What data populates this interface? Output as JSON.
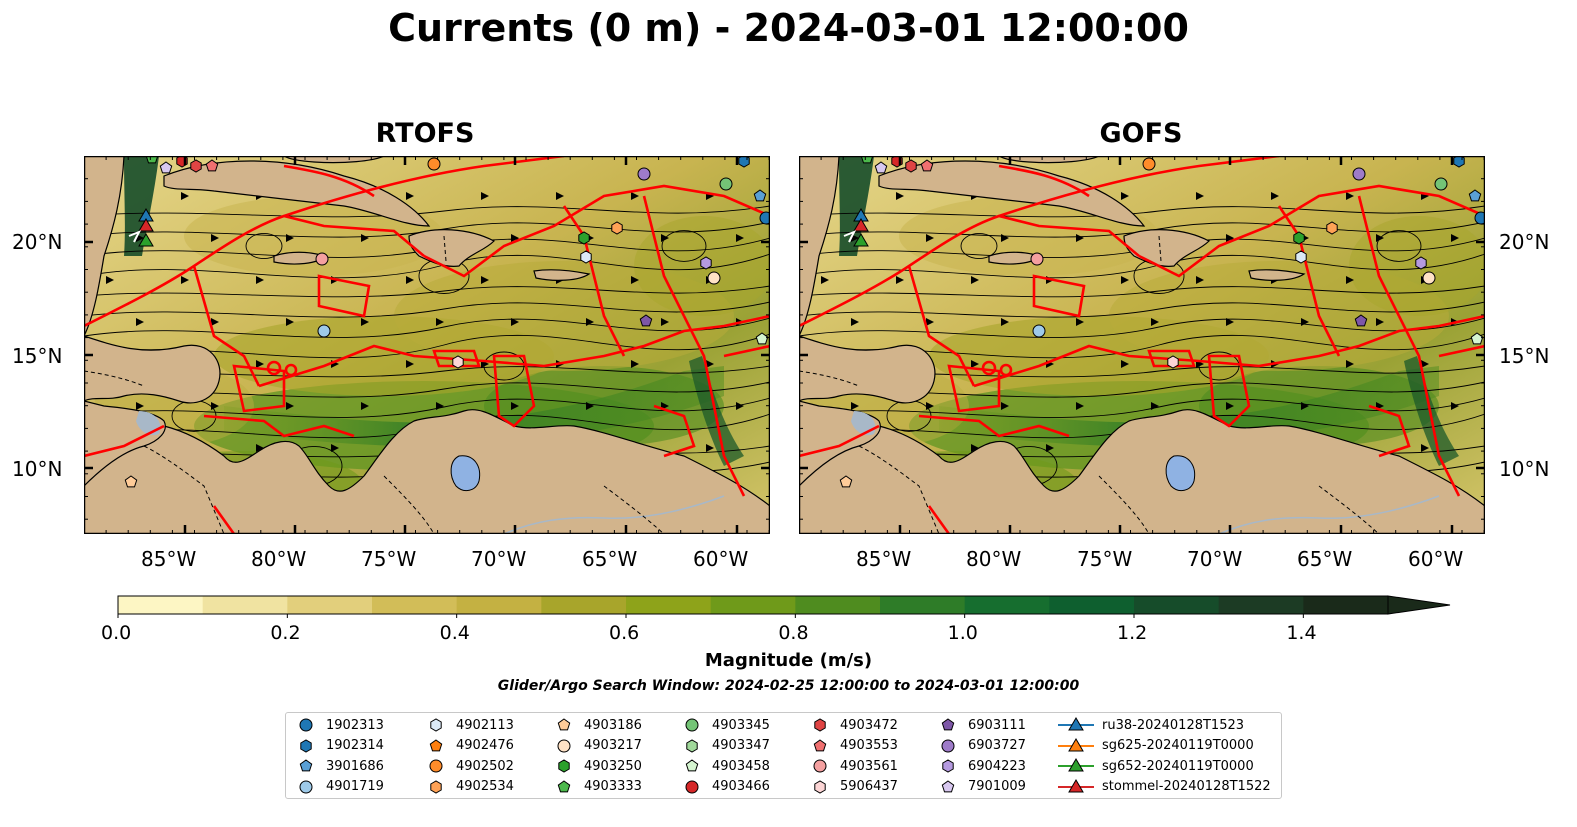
{
  "title": "Currents (0 m) - 2024-03-01 12:00:00",
  "panels": [
    {
      "title": "RTOFS"
    },
    {
      "title": "GOFS"
    }
  ],
  "lat_labels": [
    "20°N",
    "15°N",
    "10°N"
  ],
  "lon_labels": [
    "85°W",
    "80°W",
    "75°W",
    "70°W",
    "65°W",
    "60°W"
  ],
  "colorbar": {
    "label": "Magnitude (m/s)",
    "ticks": [
      "0.0",
      "0.2",
      "0.4",
      "0.6",
      "0.8",
      "1.0",
      "1.2",
      "1.4"
    ],
    "range": [
      0.0,
      1.5
    ],
    "colors": [
      "#fdf6c4",
      "#f0e3a1",
      "#e2cf7c",
      "#d2bd58",
      "#c4b142",
      "#a8a52b",
      "#8ea31a",
      "#6f9a1a",
      "#4f8c1f",
      "#2e7c28",
      "#166e2f",
      "#0e5f2f",
      "#164c2a",
      "#1c3b24",
      "#1a2a1a"
    ]
  },
  "search_window": "Glider/Argo Search Window: 2024-02-25 12:00:00 to 2024-03-01 12:00:00",
  "legend": [
    {
      "label": "1902313",
      "marker": "circle",
      "color": "#1f77b4"
    },
    {
      "label": "1902314",
      "marker": "hexagon",
      "color": "#1f77b4"
    },
    {
      "label": "3901686",
      "marker": "pentagon",
      "color": "#5aa0d6"
    },
    {
      "label": "4901719",
      "marker": "circle",
      "color": "#9ecae9"
    },
    {
      "label": "4902113",
      "marker": "hexagon",
      "color": "#dbe9f6"
    },
    {
      "label": "4902476",
      "marker": "pentagon",
      "color": "#ff7f0e"
    },
    {
      "label": "4902502",
      "marker": "circle",
      "color": "#ff8c2a"
    },
    {
      "label": "4902534",
      "marker": "hexagon",
      "color": "#ffa256"
    },
    {
      "label": "4903186",
      "marker": "pentagon",
      "color": "#ffcc99"
    },
    {
      "label": "4903217",
      "marker": "circle",
      "color": "#ffe2c6"
    },
    {
      "label": "4903250",
      "marker": "hexagon",
      "color": "#2ca02c"
    },
    {
      "label": "4903333",
      "marker": "pentagon",
      "color": "#4cb94c"
    },
    {
      "label": "4903345",
      "marker": "circle",
      "color": "#74c476"
    },
    {
      "label": "4903347",
      "marker": "hexagon",
      "color": "#a1d99b"
    },
    {
      "label": "4903458",
      "marker": "pentagon",
      "color": "#d5f5d0"
    },
    {
      "label": "4903466",
      "marker": "circle",
      "color": "#d62728"
    },
    {
      "label": "4903472",
      "marker": "hexagon",
      "color": "#e04444"
    },
    {
      "label": "4903553",
      "marker": "pentagon",
      "color": "#f07070"
    },
    {
      "label": "4903561",
      "marker": "circle",
      "color": "#f4a0a0"
    },
    {
      "label": "5906437",
      "marker": "hexagon",
      "color": "#fcd5d5"
    },
    {
      "label": "6903111",
      "marker": "pentagon",
      "color": "#7e57a8"
    },
    {
      "label": "6903727",
      "marker": "circle",
      "color": "#9e7bc9"
    },
    {
      "label": "6904223",
      "marker": "hexagon",
      "color": "#b59ae0"
    },
    {
      "label": "7901009",
      "marker": "pentagon",
      "color": "#d8c8f0"
    },
    {
      "label": "ru38-20240128T1523",
      "marker": "triangle-line",
      "color": "#1f77b4"
    },
    {
      "label": "sg625-20240119T0000",
      "marker": "triangle-line",
      "color": "#ff7f0e"
    },
    {
      "label": "sg652-20240119T0000",
      "marker": "triangle-line",
      "color": "#2ca02c"
    },
    {
      "label": "stommel-20240128T1522",
      "marker": "triangle-line",
      "color": "#d62728"
    }
  ],
  "colors": {
    "land": "#d2b48c",
    "lake": "#8fb2e3",
    "eez": "#ff0000",
    "stream": "#000000"
  }
}
